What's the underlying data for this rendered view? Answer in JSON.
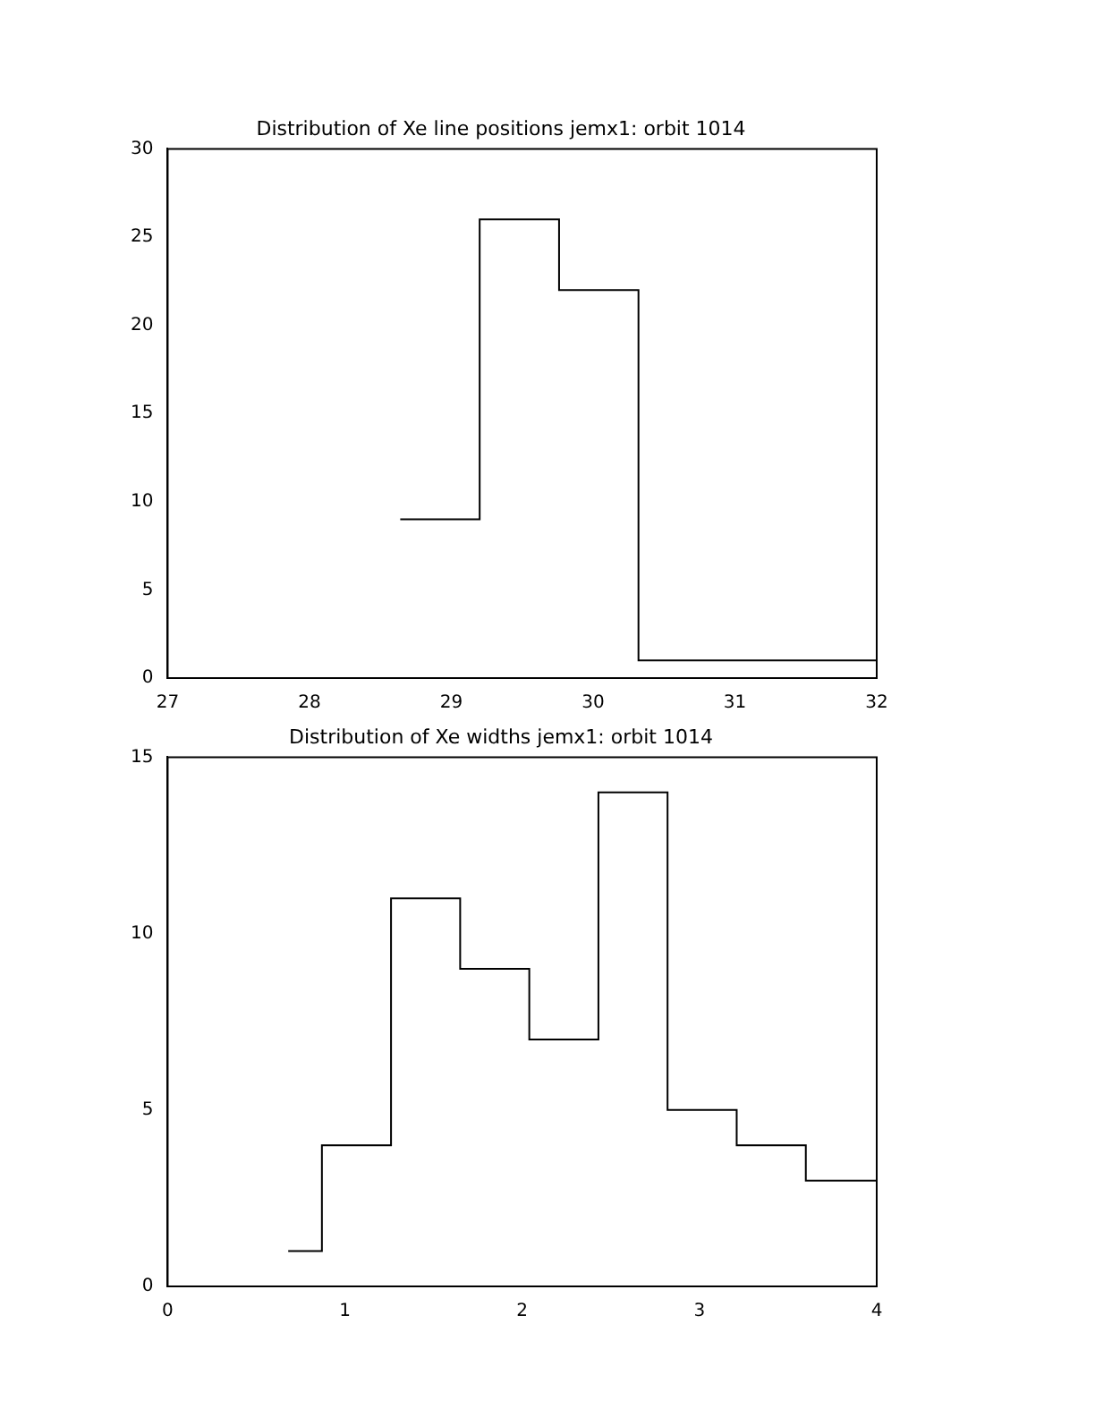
{
  "chart_data": [
    {
      "type": "histogram",
      "title": "Distribution of Xe line positions jemx1: orbit 1014",
      "bins": [
        28.64,
        29.2,
        29.76,
        30.32,
        30.88,
        31.44,
        32.0
      ],
      "values": [
        9,
        26,
        22,
        1,
        1,
        1
      ],
      "color": "#000000",
      "xlim": [
        27,
        32
      ],
      "xticks": [
        27,
        28,
        29,
        30,
        31,
        32
      ],
      "ylim": [
        0,
        30
      ],
      "yticks": [
        0,
        5,
        10,
        15,
        20,
        25,
        30
      ],
      "grid": false,
      "legend": false
    },
    {
      "type": "histogram",
      "title": "Distribution of Xe widths jemx1: orbit 1014",
      "bins": [
        0.68,
        0.87,
        1.26,
        1.65,
        2.04,
        2.43,
        2.82,
        3.21,
        3.6,
        4.0
      ],
      "values": [
        1,
        4,
        11,
        9,
        7,
        14,
        5,
        4,
        3
      ],
      "color": "#000000",
      "xlim": [
        0,
        4
      ],
      "xticks": [
        0,
        1,
        2,
        3,
        4
      ],
      "ylim": [
        0,
        15
      ],
      "yticks": [
        0,
        5,
        10,
        15
      ],
      "grid": false,
      "legend": false
    }
  ]
}
